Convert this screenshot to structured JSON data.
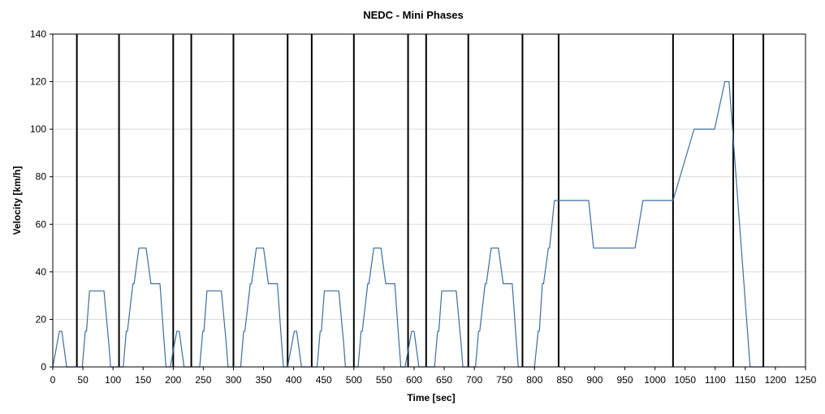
{
  "chart_data": {
    "type": "line",
    "title": "NEDC - Mini Phases",
    "xlabel": "Time [sec]",
    "ylabel": "Velocity [km/h]",
    "xlim": [
      0,
      1250
    ],
    "ylim": [
      0,
      140
    ],
    "xticks": [
      0,
      50,
      100,
      150,
      200,
      250,
      300,
      350,
      400,
      450,
      500,
      550,
      600,
      650,
      700,
      750,
      800,
      850,
      900,
      950,
      1000,
      1050,
      1100,
      1150,
      1200,
      1250
    ],
    "yticks": [
      0,
      20,
      40,
      60,
      80,
      100,
      120,
      140
    ],
    "grid": "horizontal",
    "legend": "none",
    "series_color": "#3b6e9e",
    "phase_line_color": "#000000",
    "phase_boundaries": [
      40,
      110,
      200,
      230,
      300,
      390,
      430,
      500,
      590,
      620,
      690,
      780,
      840,
      1030,
      1130,
      1180
    ],
    "series": [
      {
        "x": [
          0,
          11,
          15,
          23,
          25,
          28,
          49,
          54,
          56,
          61,
          85,
          93,
          96,
          117,
          122,
          124,
          133,
          135,
          143,
          155,
          163,
          176,
          178,
          185,
          188,
          195,
          195,
          206,
          210,
          218,
          220,
          223,
          244,
          249,
          251,
          256,
          280,
          288,
          291,
          312,
          317,
          319,
          328,
          330,
          338,
          350,
          358,
          371,
          373,
          380,
          383,
          390,
          390,
          401,
          405,
          413,
          415,
          418,
          439,
          444,
          446,
          451,
          475,
          483,
          486,
          507,
          512,
          514,
          523,
          525,
          533,
          545,
          553,
          566,
          568,
          575,
          578,
          585,
          585,
          596,
          600,
          608,
          610,
          613,
          634,
          639,
          641,
          646,
          670,
          678,
          681,
          702,
          707,
          709,
          718,
          720,
          728,
          740,
          748,
          761,
          763,
          770,
          773,
          780,
          800,
          806,
          808,
          813,
          815,
          823,
          825,
          833,
          835,
          841,
          890,
          898,
          967,
          980,
          1030,
          1065,
          1099,
          1116,
          1123,
          1158,
          1163,
          1180
        ],
        "y": [
          0,
          15,
          15,
          0,
          0,
          0,
          0,
          15,
          15,
          32,
          32,
          10,
          0,
          0,
          15,
          15,
          35,
          35,
          50,
          50,
          35,
          35,
          35,
          10,
          0,
          0,
          0,
          15,
          15,
          0,
          0,
          0,
          0,
          15,
          15,
          32,
          32,
          10,
          0,
          0,
          15,
          15,
          35,
          35,
          50,
          50,
          35,
          35,
          35,
          10,
          0,
          0,
          0,
          15,
          15,
          0,
          0,
          0,
          0,
          15,
          15,
          32,
          32,
          10,
          0,
          0,
          15,
          15,
          35,
          35,
          50,
          50,
          35,
          35,
          35,
          10,
          0,
          0,
          0,
          15,
          15,
          0,
          0,
          0,
          0,
          15,
          15,
          32,
          32,
          10,
          0,
          0,
          15,
          15,
          35,
          35,
          50,
          50,
          35,
          35,
          35,
          10,
          0,
          0,
          0,
          15,
          15,
          35,
          35,
          50,
          50,
          70,
          70,
          70,
          70,
          50,
          50,
          70,
          70,
          100,
          100,
          120,
          120,
          0,
          0,
          0
        ]
      }
    ]
  }
}
